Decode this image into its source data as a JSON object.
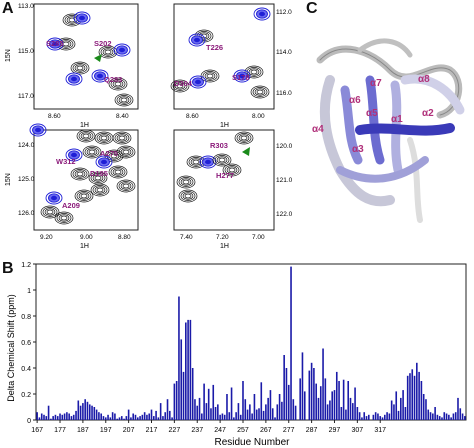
{
  "panel_labels": {
    "a": "A",
    "b": "B",
    "c": "C"
  },
  "colors": {
    "blue": "#1f1fd6",
    "black": "#111111",
    "magenta": "#8b1a7a",
    "green": "#1a8a1a",
    "bar": "#1a1aa8",
    "helix_label": "#b0307a"
  },
  "nmr": {
    "y_axis_label": "15N",
    "x_axis_label": "1H",
    "panels": [
      {
        "yticks": [
          "113.0",
          "115.0",
          "117.0"
        ],
        "xticks": [
          "8.60",
          "8.40"
        ],
        "labels": [
          "S285",
          "S202",
          "Q283"
        ]
      },
      {
        "yticks": [
          "112.0",
          "114.0",
          "116.0"
        ],
        "xticks": [
          "8.60",
          "8.00"
        ],
        "labels": [
          "T226",
          "D304",
          "S178"
        ]
      },
      {
        "yticks": [
          "124.0",
          "125.0",
          "126.0"
        ],
        "xticks": [
          "9.20",
          "9.00",
          "8.80"
        ],
        "labels": [
          "W312",
          "A275",
          "D195",
          "A209"
        ]
      },
      {
        "yticks": [
          "120.0",
          "121.0",
          "122.0"
        ],
        "xticks": [
          "7.40",
          "7.20",
          "7.00"
        ],
        "labels": [
          "R303",
          "H277"
        ]
      }
    ]
  },
  "structure": {
    "helix_labels": [
      "α1",
      "α2",
      "α3",
      "α4",
      "α5",
      "α6",
      "α7",
      "α8"
    ]
  },
  "chart_data": {
    "type": "bar",
    "xlabel": "Residue Number",
    "ylabel": "Delta Chemical Shift (ppm)",
    "ylim": [
      0,
      1.2
    ],
    "yticks": [
      "0",
      "0.2",
      "0.4",
      "0.6",
      "0.8",
      "1",
      "1.2"
    ],
    "xticks": [
      "167",
      "177",
      "187",
      "197",
      "207",
      "217",
      "227",
      "237",
      "247",
      "257",
      "267",
      "277",
      "287",
      "297",
      "307",
      "317"
    ],
    "x_start": 167,
    "values": [
      0.06,
      0.02,
      0.05,
      0.04,
      0.03,
      0.11,
      0.01,
      0.03,
      0.04,
      0.03,
      0.05,
      0.04,
      0.05,
      0.06,
      0.05,
      0.03,
      0.04,
      0.07,
      0.15,
      0.11,
      0.13,
      0.16,
      0.14,
      0.12,
      0.11,
      0.1,
      0.08,
      0.06,
      0.05,
      0.03,
      0.02,
      0.04,
      0.02,
      0.06,
      0.05,
      0.01,
      0.02,
      0.03,
      0.01,
      0.03,
      0.08,
      0.02,
      0.05,
      0.04,
      0.02,
      0.03,
      0.04,
      0.06,
      0.04,
      0.05,
      0.08,
      0.03,
      0.07,
      0.02,
      0.13,
      0.03,
      0.06,
      0.16,
      0.07,
      0.02,
      0.28,
      0.3,
      0.95,
      0.62,
      0.37,
      0.75,
      0.77,
      0.77,
      0.4,
      0.16,
      0.11,
      0.17,
      0.05,
      0.28,
      0.13,
      0.24,
      0.09,
      0.27,
      0.1,
      0.12,
      0.04,
      0.05,
      0.04,
      0.2,
      0.06,
      0.25,
      0.02,
      0.06,
      0.13,
      0.04,
      0.3,
      0.16,
      0.08,
      0.12,
      0.05,
      0.2,
      0.08,
      0.09,
      0.29,
      0.07,
      0.12,
      0.17,
      0.23,
      0.09,
      0.02,
      0.12,
      0.2,
      0.14,
      0.5,
      0.4,
      0.27,
      1.18,
      0.16,
      0.11,
      0.0,
      0.32,
      0.52,
      0.22,
      0.0,
      0.38,
      0.44,
      0.4,
      0.28,
      0.17,
      0.26,
      0.55,
      0.32,
      0.12,
      0.15,
      0.22,
      0.23,
      0.37,
      0.3,
      0.1,
      0.31,
      0.08,
      0.3,
      0.17,
      0.13,
      0.25,
      0.1,
      0.06,
      0.02,
      0.06,
      0.03,
      0.04,
      0.0,
      0.04,
      0.06,
      0.05,
      0.03,
      0.02,
      0.04,
      0.06,
      0.05,
      0.15,
      0.12,
      0.22,
      0.07,
      0.17,
      0.23,
      0.1,
      0.34,
      0.36,
      0.39,
      0.34,
      0.44,
      0.37,
      0.3,
      0.2,
      0.16,
      0.08,
      0.06,
      0.05,
      0.1,
      0.04,
      0.03,
      0.02,
      0.06,
      0.05,
      0.04,
      0.02,
      0.05,
      0.06,
      0.17,
      0.09,
      0.05,
      0.03
    ]
  }
}
